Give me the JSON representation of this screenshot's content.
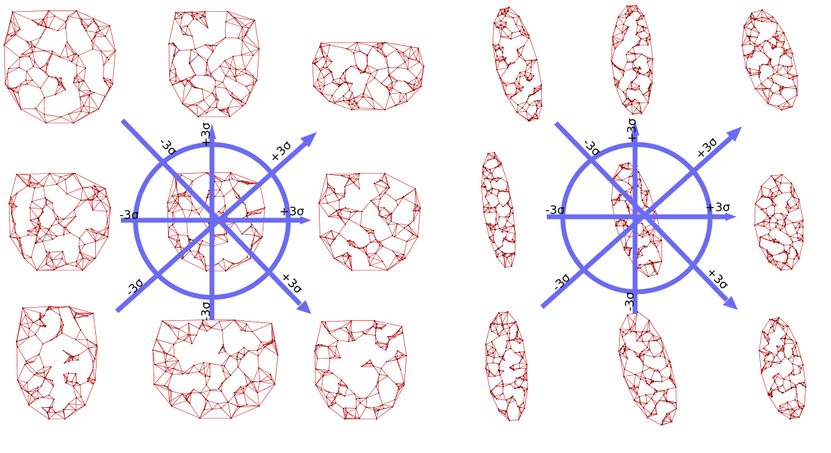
{
  "colors": {
    "mesh_stroke": "#c00000",
    "mesh_vertex": "#3a0000",
    "arrow": "#6b6bf2",
    "ring": "#6b6bf2",
    "background": "#ffffff"
  },
  "panels": [
    {
      "id": "frontal-view",
      "mesh_shape": "frontal-face",
      "arrows": [
        {
          "direction": "up",
          "neg_label": "-3σ",
          "pos_label": "+3σ"
        },
        {
          "direction": "upper-right",
          "neg_label": "-3σ",
          "pos_label": "+3σ"
        },
        {
          "direction": "right",
          "neg_label": "-3σ",
          "pos_label": "+3σ"
        },
        {
          "direction": "lower-right",
          "neg_label": "-3σ",
          "pos_label": "+3σ"
        }
      ]
    },
    {
      "id": "profile-view",
      "mesh_shape": "profile-face",
      "arrows": [
        {
          "direction": "up",
          "neg_label": "-3σ",
          "pos_label": "+3σ"
        },
        {
          "direction": "upper-right",
          "neg_label": "-3σ",
          "pos_label": "+3σ"
        },
        {
          "direction": "right",
          "neg_label": "-3σ",
          "pos_label": "+3σ"
        },
        {
          "direction": "lower-right",
          "neg_label": "-3σ",
          "pos_label": "+3σ"
        }
      ]
    }
  ]
}
